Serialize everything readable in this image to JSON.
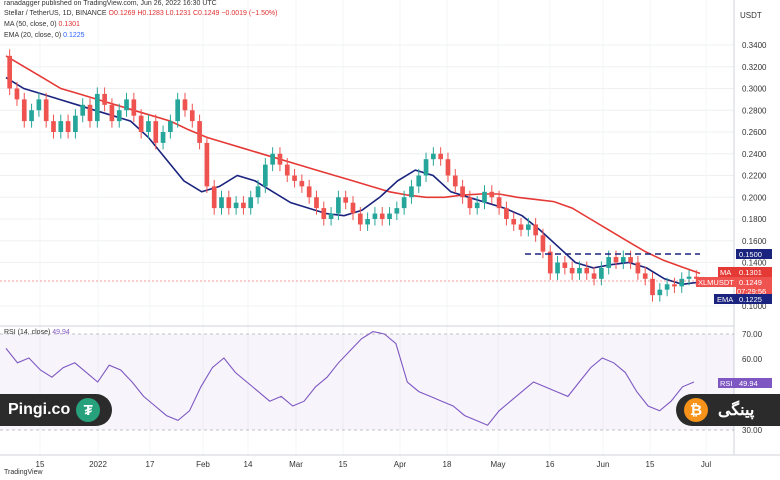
{
  "header": {
    "publisher": "ranadagger published on TradingView.com, Jun 26, 2022 16:30 UTC",
    "symbol": "Stellar / TetherUS, 1D, BINANCE",
    "ohlc": "O0.1269 H0.1283 L0.1231 C0.1249 −0.0019 (−1.50%)",
    "ma_label": "MA (50, close, 0)",
    "ma_value": "0.1301",
    "ema_label": "EMA (20, close, 0)",
    "ema_value": "0.1225",
    "currency": "USDT"
  },
  "rsi": {
    "label": "RSI (14, close)",
    "value": "49.94",
    "ticks": [
      "70.00",
      "60.00",
      "30.00"
    ],
    "badge": "RSI",
    "badge_value": "49.94"
  },
  "badges": {
    "ma": "MA",
    "ma_value": "0.1301",
    "symbol": "XLMUSDT",
    "price": "0.1249",
    "countdown": "07:29:56",
    "level": "0.1500",
    "ema": "EMA",
    "ema_value": "0.1225"
  },
  "watermark": {
    "left": "Pingi.co",
    "left_icon": "tether-icon",
    "right": "پینگی",
    "right_icon": "bitcoin-icon"
  },
  "footer": "TradingView",
  "colors": {
    "up": "#26a69a",
    "down": "#ef5350",
    "ma": "#e53935",
    "ema": "#1a237e",
    "rsi": "#7e57c2",
    "level": "#1a237e",
    "watermark": "#2b2b2b"
  },
  "chart_data": {
    "type": "candlestick",
    "y_axis": {
      "ticks": [
        "0.3400",
        "0.3200",
        "0.3000",
        "0.2800",
        "0.2600",
        "0.2400",
        "0.2200",
        "0.2000",
        "0.1800",
        "0.1600",
        "0.1400",
        "0.1000"
      ],
      "ylim": [
        0.1,
        0.35
      ]
    },
    "x_axis": {
      "ticks": [
        "15",
        "2022",
        "17",
        "Feb",
        "14",
        "Mar",
        "15",
        "Apr",
        "18",
        "May",
        "16",
        "Jun",
        "15",
        "Jul"
      ]
    },
    "horizontal_line": 0.15,
    "candles_open_close": [
      [
        0.33,
        0.3
      ],
      [
        0.3,
        0.29
      ],
      [
        0.29,
        0.27
      ],
      [
        0.27,
        0.28
      ],
      [
        0.28,
        0.29
      ],
      [
        0.29,
        0.27
      ],
      [
        0.27,
        0.26
      ],
      [
        0.26,
        0.27
      ],
      [
        0.27,
        0.26
      ],
      [
        0.26,
        0.275
      ],
      [
        0.275,
        0.285
      ],
      [
        0.285,
        0.27
      ],
      [
        0.27,
        0.295
      ],
      [
        0.295,
        0.285
      ],
      [
        0.285,
        0.27
      ],
      [
        0.27,
        0.28
      ],
      [
        0.28,
        0.29
      ],
      [
        0.29,
        0.275
      ],
      [
        0.275,
        0.26
      ],
      [
        0.26,
        0.27
      ],
      [
        0.27,
        0.25
      ],
      [
        0.25,
        0.26
      ],
      [
        0.26,
        0.27
      ],
      [
        0.27,
        0.29
      ],
      [
        0.29,
        0.28
      ],
      [
        0.28,
        0.27
      ],
      [
        0.27,
        0.25
      ],
      [
        0.25,
        0.21
      ],
      [
        0.21,
        0.19
      ],
      [
        0.19,
        0.2
      ],
      [
        0.2,
        0.19
      ],
      [
        0.19,
        0.195
      ],
      [
        0.195,
        0.19
      ],
      [
        0.19,
        0.2
      ],
      [
        0.2,
        0.21
      ],
      [
        0.21,
        0.23
      ],
      [
        0.23,
        0.24
      ],
      [
        0.24,
        0.23
      ],
      [
        0.23,
        0.22
      ],
      [
        0.22,
        0.215
      ],
      [
        0.215,
        0.21
      ],
      [
        0.21,
        0.2
      ],
      [
        0.2,
        0.19
      ],
      [
        0.19,
        0.18
      ],
      [
        0.18,
        0.185
      ],
      [
        0.185,
        0.2
      ],
      [
        0.2,
        0.195
      ],
      [
        0.195,
        0.185
      ],
      [
        0.185,
        0.175
      ],
      [
        0.175,
        0.18
      ],
      [
        0.18,
        0.185
      ],
      [
        0.185,
        0.18
      ],
      [
        0.18,
        0.185
      ],
      [
        0.185,
        0.19
      ],
      [
        0.19,
        0.2
      ],
      [
        0.2,
        0.21
      ],
      [
        0.21,
        0.22
      ],
      [
        0.22,
        0.235
      ],
      [
        0.235,
        0.24
      ],
      [
        0.24,
        0.235
      ],
      [
        0.235,
        0.22
      ],
      [
        0.22,
        0.21
      ],
      [
        0.21,
        0.2
      ],
      [
        0.2,
        0.19
      ],
      [
        0.19,
        0.195
      ],
      [
        0.195,
        0.205
      ],
      [
        0.205,
        0.2
      ],
      [
        0.2,
        0.19
      ],
      [
        0.19,
        0.18
      ],
      [
        0.18,
        0.175
      ],
      [
        0.175,
        0.17
      ],
      [
        0.17,
        0.175
      ],
      [
        0.175,
        0.165
      ],
      [
        0.165,
        0.15
      ],
      [
        0.15,
        0.13
      ],
      [
        0.13,
        0.14
      ],
      [
        0.14,
        0.135
      ],
      [
        0.135,
        0.13
      ],
      [
        0.13,
        0.135
      ],
      [
        0.135,
        0.13
      ],
      [
        0.13,
        0.125
      ],
      [
        0.125,
        0.135
      ],
      [
        0.135,
        0.145
      ],
      [
        0.145,
        0.14
      ],
      [
        0.14,
        0.145
      ],
      [
        0.145,
        0.14
      ],
      [
        0.14,
        0.13
      ],
      [
        0.13,
        0.125
      ],
      [
        0.125,
        0.11
      ],
      [
        0.11,
        0.115
      ],
      [
        0.115,
        0.12
      ],
      [
        0.12,
        0.118
      ],
      [
        0.118,
        0.125
      ],
      [
        0.125,
        0.127
      ],
      [
        0.127,
        0.125
      ]
    ],
    "ma50": [
      0.33,
      0.32,
      0.31,
      0.3,
      0.295,
      0.29,
      0.285,
      0.28,
      0.275,
      0.27,
      0.262,
      0.255,
      0.25,
      0.245,
      0.24,
      0.235,
      0.23,
      0.225,
      0.22,
      0.215,
      0.21,
      0.205,
      0.202,
      0.2,
      0.2,
      0.202,
      0.203,
      0.203,
      0.2,
      0.198,
      0.196,
      0.19,
      0.18,
      0.17,
      0.16,
      0.15,
      0.142,
      0.136,
      0.13
    ],
    "ema20": [
      0.31,
      0.3,
      0.295,
      0.29,
      0.285,
      0.28,
      0.275,
      0.27,
      0.255,
      0.235,
      0.215,
      0.205,
      0.21,
      0.22,
      0.215,
      0.205,
      0.195,
      0.19,
      0.185,
      0.183,
      0.188,
      0.2,
      0.215,
      0.225,
      0.22,
      0.205,
      0.2,
      0.195,
      0.19,
      0.183,
      0.17,
      0.155,
      0.14,
      0.135,
      0.138,
      0.14,
      0.135,
      0.125,
      0.12,
      0.122
    ],
    "rsi": [
      64,
      58,
      60,
      55,
      52,
      56,
      58,
      54,
      50,
      57,
      55,
      50,
      44,
      40,
      36,
      34,
      38,
      48,
      56,
      60,
      54,
      50,
      46,
      42,
      44,
      40,
      42,
      48,
      52,
      58,
      63,
      68,
      71,
      70,
      66,
      50,
      46,
      44,
      42,
      40,
      36,
      34,
      32,
      38,
      42,
      46,
      50,
      48,
      46,
      44,
      50,
      56,
      60,
      58,
      54,
      46,
      40,
      38,
      42,
      48,
      50
    ]
  }
}
